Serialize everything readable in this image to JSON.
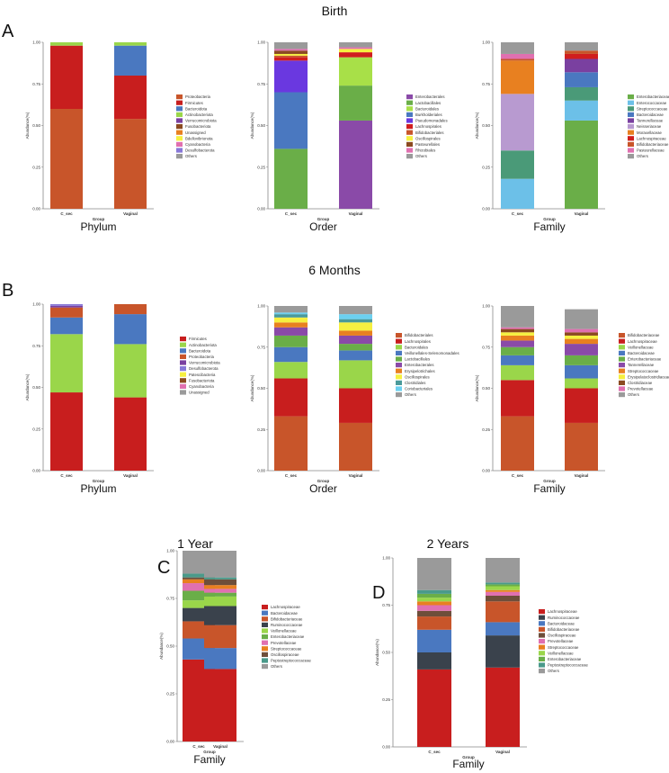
{
  "sections": {
    "birth": "Birth",
    "six_months": "6 Months",
    "one_year": "1 Year",
    "two_years": "2 Years"
  },
  "panel_letters": {
    "a": "A",
    "b": "B",
    "c": "C",
    "d": "D"
  },
  "chart_data": [
    {
      "type": "bar",
      "stacked": true,
      "section": "Birth",
      "title": "Phylum",
      "xlabel": "Group",
      "ylabel": "Abundance(%)",
      "ylim": [
        0,
        1
      ],
      "yticks": [
        "0.00",
        "0.25",
        "0.50",
        "0.75",
        "1.00"
      ],
      "categories": [
        "C_sec",
        "Vaginal"
      ],
      "legend_position": "right",
      "series": [
        {
          "name": "Proteobacteria",
          "color": "#c8552a",
          "values": [
            0.6,
            0.54
          ]
        },
        {
          "name": "Firmicutes",
          "color": "#c81e1e",
          "values": [
            0.38,
            0.26
          ]
        },
        {
          "name": "Bacteroidota",
          "color": "#4a78c0",
          "values": [
            0.0,
            0.18
          ]
        },
        {
          "name": "Actinobacteriota",
          "color": "#9ad64a",
          "values": [
            0.02,
            0.02
          ]
        },
        {
          "name": "Verrucomicrobiota",
          "color": "#7a40a0",
          "values": [
            0,
            0
          ]
        },
        {
          "name": "Fusobacteriota",
          "color": "#8b4a20",
          "values": [
            0,
            0
          ]
        },
        {
          "name": "Unassigned",
          "color": "#e88020",
          "values": [
            0,
            0
          ]
        },
        {
          "name": "Bdellovibrionota",
          "color": "#f6f040",
          "values": [
            0,
            0
          ]
        },
        {
          "name": "Cyanobacteria",
          "color": "#e070b0",
          "values": [
            0,
            0
          ]
        },
        {
          "name": "Desulfobacterota",
          "color": "#8878d8",
          "values": [
            0,
            0
          ]
        },
        {
          "name": "Others",
          "color": "#9a9a9a",
          "values": [
            0,
            0
          ]
        }
      ]
    },
    {
      "type": "bar",
      "stacked": true,
      "section": "Birth",
      "title": "Order",
      "xlabel": "Group",
      "ylabel": "Abundance(%)",
      "ylim": [
        0,
        1
      ],
      "yticks": [
        "0.00",
        "0.25",
        "0.50",
        "0.75",
        "1.00"
      ],
      "categories": [
        "C_sec",
        "Vaginal"
      ],
      "legend_position": "right",
      "series": [
        {
          "name": "Enterobacterales",
          "color": "#8a4aa8",
          "values": [
            0.0,
            0.53
          ]
        },
        {
          "name": "Lactobacillales",
          "color": "#6aae48",
          "values": [
            0.36,
            0.21
          ]
        },
        {
          "name": "Bacteroidales",
          "color": "#a8e048",
          "values": [
            0.0,
            0.17
          ]
        },
        {
          "name": "Burkholderiales",
          "color": "#4a78c0",
          "values": [
            0.34,
            0.0
          ]
        },
        {
          "name": "Pseudomonadales",
          "color": "#6a38e0",
          "values": [
            0.19,
            0.0
          ]
        },
        {
          "name": "Lachnospirales",
          "color": "#d01e1e",
          "values": [
            0.02,
            0.03
          ]
        },
        {
          "name": "Bifidobacteriales",
          "color": "#c8552a",
          "values": [
            0.01,
            0.0
          ]
        },
        {
          "name": "Oscillospirales",
          "color": "#f6f040",
          "values": [
            0.01,
            0.02
          ]
        },
        {
          "name": "Pasteurellales",
          "color": "#8b4a20",
          "values": [
            0.02,
            0.0
          ]
        },
        {
          "name": "Rhizobiales",
          "color": "#e070b0",
          "values": [
            0.01,
            0.01
          ]
        },
        {
          "name": "Others",
          "color": "#9a9a9a",
          "values": [
            0.04,
            0.03
          ]
        }
      ]
    },
    {
      "type": "bar",
      "stacked": true,
      "section": "Birth",
      "title": "Family",
      "xlabel": "Group",
      "ylabel": "Abundance(%)",
      "ylim": [
        0,
        1
      ],
      "yticks": [
        "0.00",
        "0.25",
        "0.50",
        "0.75",
        "1.00"
      ],
      "categories": [
        "C_sec",
        "Vaginal"
      ],
      "legend_position": "right",
      "series": [
        {
          "name": "Enterobacteriaceae",
          "color": "#6aae48",
          "values": [
            0.0,
            0.53
          ]
        },
        {
          "name": "Enterococcaceae",
          "color": "#6cc0e8",
          "values": [
            0.18,
            0.12
          ]
        },
        {
          "name": "Streptococcaceae",
          "color": "#4a9a78",
          "values": [
            0.17,
            0.08
          ]
        },
        {
          "name": "Bacteroidaceae",
          "color": "#4a78c0",
          "values": [
            0.0,
            0.09
          ]
        },
        {
          "name": "Tannerellaceae",
          "color": "#7a40a0",
          "values": [
            0.0,
            0.08
          ]
        },
        {
          "name": "Neisseriaceae",
          "color": "#b89ad0",
          "values": [
            0.34,
            0.0
          ]
        },
        {
          "name": "Moraxellaceae",
          "color": "#e88020",
          "values": [
            0.2,
            0.0
          ]
        },
        {
          "name": "Lachnospiraceae",
          "color": "#d01e1e",
          "values": [
            0.0,
            0.03
          ]
        },
        {
          "name": "Bifidobacteriaceae",
          "color": "#c8552a",
          "values": [
            0.01,
            0.02
          ]
        },
        {
          "name": "Pasteurellaceae",
          "color": "#e070b0",
          "values": [
            0.03,
            0.0
          ]
        },
        {
          "name": "Others",
          "color": "#9a9a9a",
          "values": [
            0.07,
            0.05
          ]
        }
      ]
    },
    {
      "type": "bar",
      "stacked": true,
      "section": "6 Months",
      "title": "Phylum",
      "xlabel": "Group",
      "ylabel": "Abundance(%)",
      "ylim": [
        0,
        1
      ],
      "yticks": [
        "0.00",
        "0.25",
        "0.50",
        "0.75",
        "1.00"
      ],
      "categories": [
        "C_sec",
        "Vaginal"
      ],
      "legend_position": "right",
      "series": [
        {
          "name": "Firmicutes",
          "color": "#c81e1e",
          "values": [
            0.47,
            0.44
          ]
        },
        {
          "name": "Actinobacteriota",
          "color": "#9ad64a",
          "values": [
            0.35,
            0.32
          ]
        },
        {
          "name": "Bacteroidota",
          "color": "#4a78c0",
          "values": [
            0.1,
            0.18
          ]
        },
        {
          "name": "Proteobacteria",
          "color": "#c8552a",
          "values": [
            0.06,
            0.06
          ]
        },
        {
          "name": "Verrucomicrobiota",
          "color": "#7a40a0",
          "values": [
            0.01,
            0.0
          ]
        },
        {
          "name": "Desulfobacterota",
          "color": "#8878d8",
          "values": [
            0.01,
            0.0
          ]
        },
        {
          "name": "Patescibacteria",
          "color": "#f6f040",
          "values": [
            0,
            0
          ]
        },
        {
          "name": "Fusobacteriota",
          "color": "#8b4a20",
          "values": [
            0,
            0
          ]
        },
        {
          "name": "Cyanobacteria",
          "color": "#e070b0",
          "values": [
            0,
            0
          ]
        },
        {
          "name": "Unassigned",
          "color": "#9a9a9a",
          "values": [
            0,
            0
          ]
        }
      ]
    },
    {
      "type": "bar",
      "stacked": true,
      "section": "6 Months",
      "title": "Order",
      "xlabel": "Group",
      "ylabel": "Abundance(%)",
      "ylim": [
        0,
        1
      ],
      "yticks": [
        "0.00",
        "0.25",
        "0.50",
        "0.75",
        "1.00"
      ],
      "categories": [
        "C_sec",
        "Vaginal"
      ],
      "legend_position": "right",
      "series": [
        {
          "name": "Bifidobacteriales",
          "color": "#c8552a",
          "values": [
            0.33,
            0.29
          ]
        },
        {
          "name": "Lachnospirales",
          "color": "#c81e1e",
          "values": [
            0.23,
            0.21
          ]
        },
        {
          "name": "Bacteroidales",
          "color": "#9ad64a",
          "values": [
            0.1,
            0.17
          ]
        },
        {
          "name": "Veillonellales-Selenomonadales",
          "color": "#4a78c0",
          "values": [
            0.09,
            0.06
          ]
        },
        {
          "name": "Lactobacillales",
          "color": "#6aae48",
          "values": [
            0.07,
            0.04
          ]
        },
        {
          "name": "Enterobacterales",
          "color": "#8a4aa8",
          "values": [
            0.05,
            0.05
          ]
        },
        {
          "name": "Erysipelotrichales",
          "color": "#e88020",
          "values": [
            0.03,
            0.03
          ]
        },
        {
          "name": "Oscillospirales",
          "color": "#f6f040",
          "values": [
            0.03,
            0.05
          ]
        },
        {
          "name": "Clostridiales",
          "color": "#4a9a9a",
          "values": [
            0.02,
            0.02
          ]
        },
        {
          "name": "Coriobacteriales",
          "color": "#6cd0f0",
          "values": [
            0.01,
            0.03
          ]
        },
        {
          "name": "Others",
          "color": "#9a9a9a",
          "values": [
            0.04,
            0.05
          ]
        }
      ]
    },
    {
      "type": "bar",
      "stacked": true,
      "section": "6 Months",
      "title": "Family",
      "xlabel": "Group",
      "ylabel": "Abundance(%)",
      "ylim": [
        0,
        1
      ],
      "yticks": [
        "0.00",
        "0.25",
        "0.50",
        "0.75",
        "1.00"
      ],
      "categories": [
        "C_sec",
        "Vaginal"
      ],
      "legend_position": "right",
      "series": [
        {
          "name": "Bifidobacteriaceae",
          "color": "#c8552a",
          "values": [
            0.33,
            0.29
          ]
        },
        {
          "name": "Lachnospiraceae",
          "color": "#c81e1e",
          "values": [
            0.22,
            0.21
          ]
        },
        {
          "name": "Veillonellaceae",
          "color": "#9ad64a",
          "values": [
            0.09,
            0.06
          ]
        },
        {
          "name": "Bacteroidaceae",
          "color": "#4a78c0",
          "values": [
            0.06,
            0.08
          ]
        },
        {
          "name": "Enterobacteriaceae",
          "color": "#6aae48",
          "values": [
            0.05,
            0.06
          ]
        },
        {
          "name": "Tannerellaceae",
          "color": "#8a4aa8",
          "values": [
            0.04,
            0.07
          ]
        },
        {
          "name": "Streptococcaceae",
          "color": "#e88020",
          "values": [
            0.03,
            0.03
          ]
        },
        {
          "name": "Erysipelatoclostridiaceae",
          "color": "#f6f040",
          "values": [
            0.02,
            0.02
          ]
        },
        {
          "name": "Clostridiaceae",
          "color": "#8b4a20",
          "values": [
            0.02,
            0.02
          ]
        },
        {
          "name": "Prevotellaceae",
          "color": "#e070b0",
          "values": [
            0.01,
            0.02
          ]
        },
        {
          "name": "Others",
          "color": "#9a9a9a",
          "values": [
            0.13,
            0.12
          ]
        }
      ]
    },
    {
      "type": "bar",
      "stacked": true,
      "section": "1 Year",
      "title": "Family",
      "xlabel": "Group",
      "ylabel": "Abundance(%)",
      "ylim": [
        0,
        1
      ],
      "yticks": [
        "0.00",
        "0.25",
        "0.50",
        "0.75",
        "1.00"
      ],
      "categories": [
        "C_sec",
        "Vaginal"
      ],
      "legend_position": "right",
      "series": [
        {
          "name": "Lachnospiraceae",
          "color": "#c81e1e",
          "values": [
            0.43,
            0.38
          ]
        },
        {
          "name": "Bacteroidaceae",
          "color": "#4a78c0",
          "values": [
            0.11,
            0.11
          ]
        },
        {
          "name": "Bifidobacteriaceae",
          "color": "#c8552a",
          "values": [
            0.09,
            0.12
          ]
        },
        {
          "name": "Ruminococcaceae",
          "color": "#3a424c",
          "values": [
            0.07,
            0.1
          ]
        },
        {
          "name": "Veillonellaceae",
          "color": "#9ad64a",
          "values": [
            0.04,
            0.05
          ]
        },
        {
          "name": "Enterobacteriaceae",
          "color": "#6aae48",
          "values": [
            0.05,
            0.02
          ]
        },
        {
          "name": "Prevotellaceae",
          "color": "#e070b0",
          "values": [
            0.04,
            0.02
          ]
        },
        {
          "name": "Streptococcaceae",
          "color": "#e88020",
          "values": [
            0.02,
            0.02
          ]
        },
        {
          "name": "Oscillospiraceae",
          "color": "#6e4e3a",
          "values": [
            0.01,
            0.03
          ]
        },
        {
          "name": "Peptostreptococcaceae",
          "color": "#4a9a8a",
          "values": [
            0.02,
            0.01
          ]
        },
        {
          "name": "Others",
          "color": "#9a9a9a",
          "values": [
            0.12,
            0.14
          ]
        }
      ]
    },
    {
      "type": "bar",
      "stacked": true,
      "section": "2 Years",
      "title": "Family",
      "xlabel": "Group",
      "ylabel": "Abundance(%)",
      "ylim": [
        0,
        1
      ],
      "yticks": [
        "0.00",
        "0.25",
        "0.50",
        "0.75",
        "1.00"
      ],
      "categories": [
        "C_sec",
        "Vaginal"
      ],
      "legend_position": "right",
      "series": [
        {
          "name": "Lachnospiraceae",
          "color": "#c81e1e",
          "values": [
            0.41,
            0.42
          ]
        },
        {
          "name": "Ruminococcaceae",
          "color": "#3a424c",
          "values": [
            0.09,
            0.17
          ]
        },
        {
          "name": "Bacteroidaceae",
          "color": "#4a78c0",
          "values": [
            0.12,
            0.07
          ]
        },
        {
          "name": "Bifidobacteriaceae",
          "color": "#c8552a",
          "values": [
            0.07,
            0.11
          ]
        },
        {
          "name": "Oscillospiraceae",
          "color": "#6e4e3a",
          "values": [
            0.03,
            0.03
          ]
        },
        {
          "name": "Prevotellaceae",
          "color": "#e070b0",
          "values": [
            0.03,
            0.02
          ]
        },
        {
          "name": "Streptococcaceae",
          "color": "#e88020",
          "values": [
            0.02,
            0.01
          ]
        },
        {
          "name": "Veillonellaceae",
          "color": "#9ad64a",
          "values": [
            0.02,
            0.02
          ]
        },
        {
          "name": "Enterobacteriaceae",
          "color": "#6aae48",
          "values": [
            0.02,
            0.01
          ]
        },
        {
          "name": "Peptostreptococcaceae",
          "color": "#4a9a8a",
          "values": [
            0.02,
            0.01
          ]
        },
        {
          "name": "Others",
          "color": "#9a9a9a",
          "values": [
            0.17,
            0.13
          ]
        }
      ]
    }
  ]
}
